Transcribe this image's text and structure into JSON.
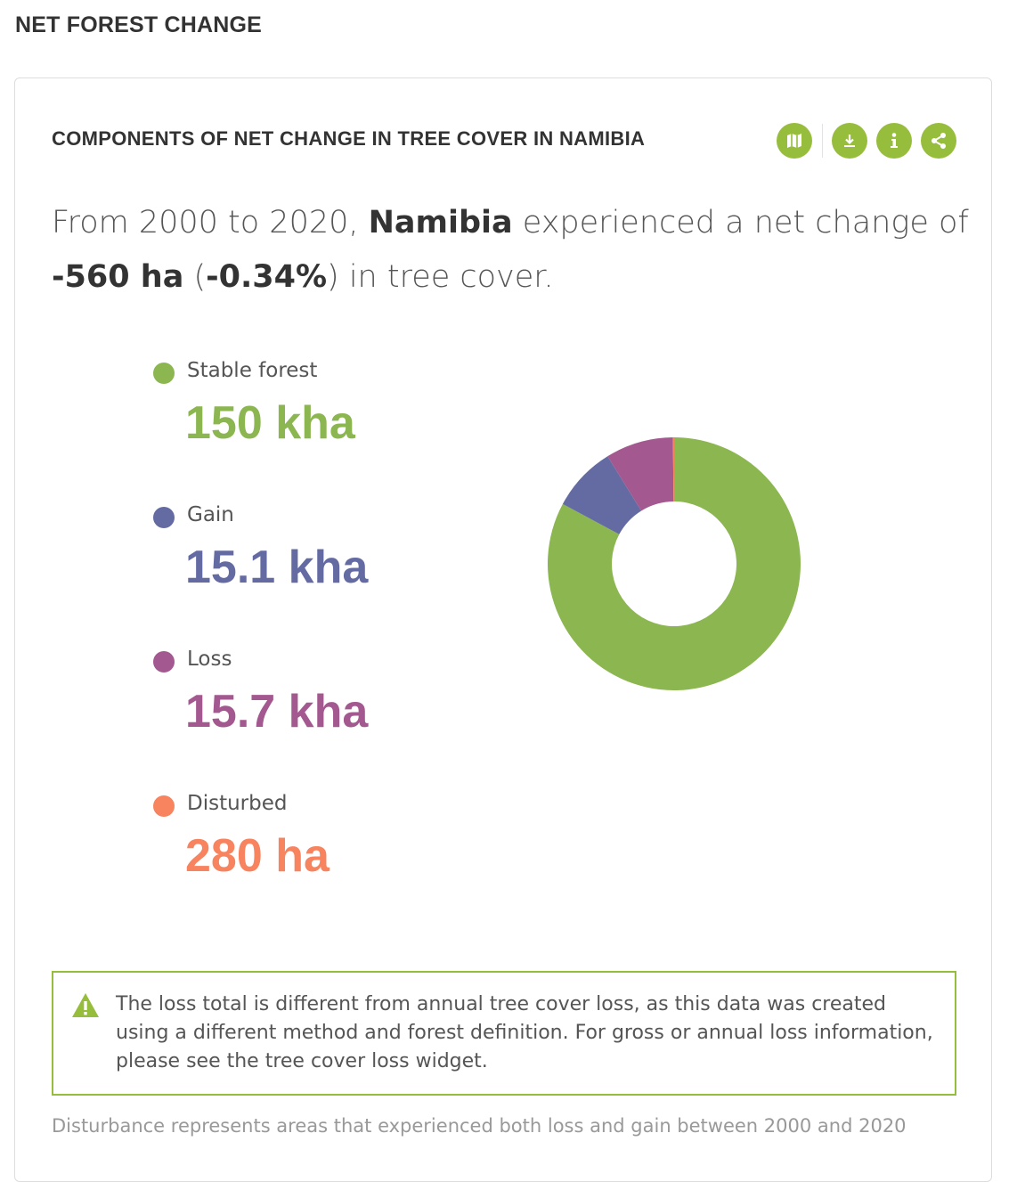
{
  "section_title": "NET FOREST CHANGE",
  "widget": {
    "title": "COMPONENTS OF NET CHANGE IN TREE COVER IN NAMIBIA",
    "toolbar": [
      {
        "name": "map-button",
        "icon": "map-icon"
      },
      {
        "name": "download-button",
        "icon": "download-icon"
      },
      {
        "name": "info-button",
        "icon": "info-icon"
      },
      {
        "name": "share-button",
        "icon": "share-icon"
      }
    ],
    "accent_color": "#97bd3d"
  },
  "sentence": {
    "part1": "From 2000 to 2020, ",
    "location": "Namibia",
    "part2": " experienced a net change of ",
    "net_change": "-560 ha",
    "paren_open": " (",
    "net_percent": "-0.34%",
    "paren_close": ")",
    "part3": " in tree cover."
  },
  "legend": [
    {
      "label": "Stable forest",
      "value": "150 kha",
      "color": "#8bb650"
    },
    {
      "label": "Gain",
      "value": "15.1 kha",
      "color": "#646ba3"
    },
    {
      "label": "Loss",
      "value": "15.7 kha",
      "color": "#a3588f"
    },
    {
      "label": "Disturbed",
      "value": "280 ha",
      "color": "#f7835f"
    }
  ],
  "chart_data": {
    "type": "pie",
    "donut": true,
    "categories": [
      "Stable forest",
      "Gain",
      "Loss",
      "Disturbed"
    ],
    "values": [
      150000,
      15100,
      15700,
      280
    ],
    "units": "ha",
    "colors": [
      "#8bb650",
      "#646ba3",
      "#a3588f",
      "#f7835f"
    ],
    "start_angle_deg": 0,
    "direction": "clockwise"
  },
  "warning": {
    "icon": "warning-triangle-icon",
    "text": "The loss total is different from annual tree cover loss, as this data was created using a different method and forest definition. For gross or annual loss information, please see the tree cover loss widget."
  },
  "footnote": "Disturbance represents areas that experienced both loss and gain between 2000 and 2020"
}
